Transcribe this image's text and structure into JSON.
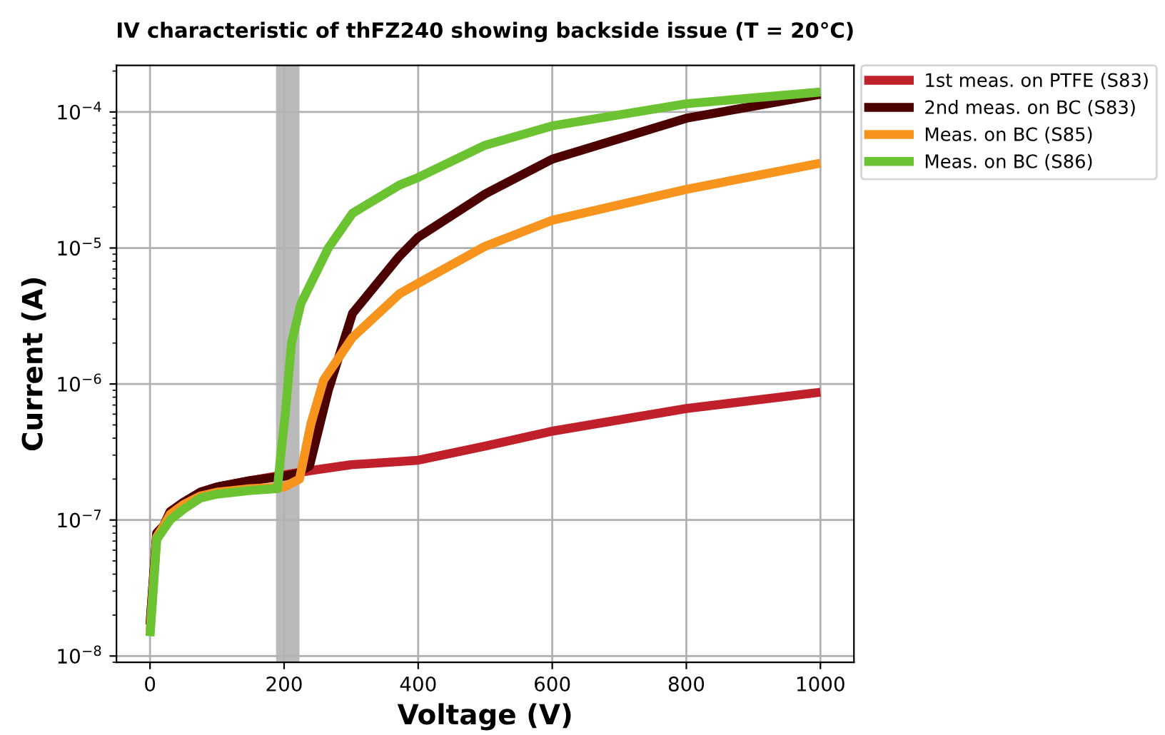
{
  "chart_data": {
    "type": "line",
    "title": "IV characteristic of thFZ240 showing backside issue (T = 20°C)",
    "xlabel": "Voltage (V)",
    "ylabel": "Current (A)",
    "log": "y",
    "xlim": [
      -50,
      1050
    ],
    "ylim": [
      9e-09,
      0.00022
    ],
    "xticks": [
      0,
      200,
      400,
      600,
      800,
      1000
    ],
    "yticks": [
      {
        "value": 1e-08,
        "label": "10$^{−8}$"
      },
      {
        "value": 1e-07,
        "label": "10$^{−7}$"
      },
      {
        "value": 1e-06,
        "label": "10$^{−6}$"
      },
      {
        "value": 1e-05,
        "label": "10$^{−5}$"
      },
      {
        "value": 0.0001,
        "label": "10$^{−4}$"
      }
    ],
    "grid": true,
    "legend": "top right",
    "marker": "none",
    "line_style": "solid",
    "bands": [
      {
        "axis": "x",
        "from": 188,
        "to": 223,
        "color": "#b3b3b3"
      }
    ],
    "series": [
      {
        "name": "1st meas. on PTFE (S83)",
        "color": "#c0202a",
        "x": [
          0,
          10,
          20,
          30,
          50,
          75,
          100,
          150,
          200,
          250,
          300,
          400,
          500,
          600,
          800,
          1000
        ],
        "values": [
          1.7e-08,
          8e-08,
          9e-08,
          1.15e-07,
          1.35e-07,
          1.6e-07,
          1.75e-07,
          1.95e-07,
          2.15e-07,
          2.35e-07,
          2.55e-07,
          2.75e-07,
          3.5e-07,
          4.5e-07,
          6.6e-07,
          8.7e-07
        ]
      },
      {
        "name": "2nd meas. on BC (S83)",
        "color": "#4d0000",
        "x": [
          0,
          10,
          20,
          30,
          50,
          75,
          100,
          150,
          200,
          220,
          238,
          266,
          302,
          372,
          400,
          500,
          600,
          800,
          1000
        ],
        "values": [
          1.7e-08,
          8e-08,
          9e-08,
          1.15e-07,
          1.35e-07,
          1.6e-07,
          1.75e-07,
          1.95e-07,
          2.1e-07,
          2.2e-07,
          2.5e-07,
          9e-07,
          3.3e-06,
          8.7e-06,
          1.2e-05,
          2.5e-05,
          4.5e-05,
          9e-05,
          0.000135
        ]
      },
      {
        "name": "Meas. on BC (S85)",
        "color": "#f7941d",
        "x": [
          0,
          10,
          20,
          30,
          50,
          75,
          100,
          150,
          200,
          223,
          240,
          259,
          302,
          372,
          400,
          500,
          600,
          800,
          1000
        ],
        "values": [
          1.5e-08,
          7.5e-08,
          9e-08,
          1.1e-07,
          1.3e-07,
          1.5e-07,
          1.6e-07,
          1.7e-07,
          1.75e-07,
          2e-07,
          5.1e-07,
          1.07e-06,
          2.2e-06,
          4.6e-06,
          5.5e-06,
          1.03e-05,
          1.6e-05,
          2.7e-05,
          4.2e-05
        ]
      },
      {
        "name": "Meas. on BC (S86)",
        "color": "#6bc332",
        "x": [
          0,
          10,
          30,
          50,
          75,
          100,
          150,
          190,
          195,
          202,
          211,
          225,
          266,
          302,
          372,
          400,
          500,
          600,
          800,
          1000
        ],
        "values": [
          1.4e-08,
          7.2e-08,
          1e-07,
          1.2e-07,
          1.45e-07,
          1.55e-07,
          1.65e-07,
          1.7e-07,
          3e-07,
          6.2e-07,
          2e-06,
          3.9e-06,
          1e-05,
          1.8e-05,
          2.9e-05,
          3.3e-05,
          5.7e-05,
          7.9e-05,
          0.000115,
          0.00014
        ]
      }
    ]
  }
}
